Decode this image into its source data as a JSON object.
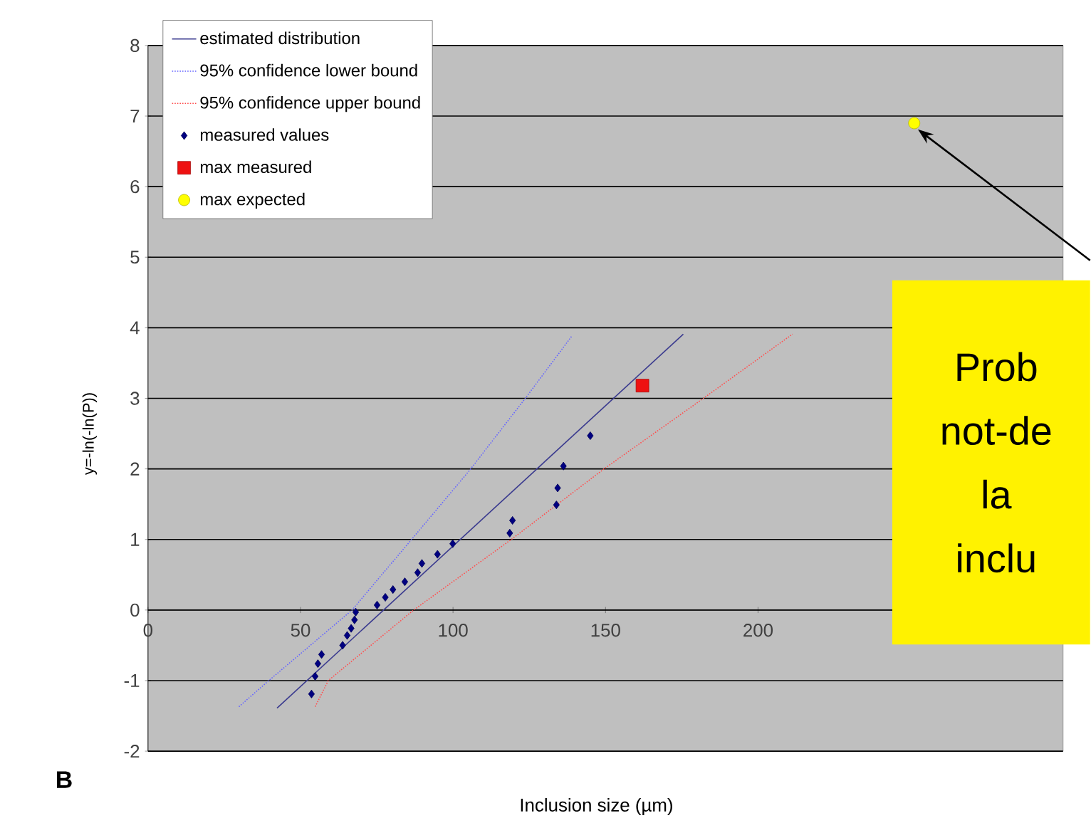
{
  "chart_data": {
    "type": "scatter",
    "xlabel": "Inclusion size (µm)",
    "ylabel": "y=-ln(-ln(P))",
    "xlim": [
      0,
      300
    ],
    "xticks": [
      0,
      50,
      100,
      150,
      200
    ],
    "ylim": [
      -2,
      8
    ],
    "yticks": [
      -2,
      -1,
      0,
      1,
      2,
      3,
      4,
      5,
      6,
      7,
      8
    ],
    "grid": "y",
    "legend": "top left",
    "annotations": [
      "B",
      "Prob not-de la inclu"
    ],
    "series": [
      {
        "name": "estimated distribution",
        "type": "line",
        "color": "#3b3b8f",
        "marker": "none",
        "line_style": "solid",
        "x": [
          42.3,
          175.5
        ],
        "values": [
          -1.39,
          3.91
        ]
      },
      {
        "name": "95% confidence lower bound",
        "type": "line",
        "color": "#6666ff",
        "marker": "none",
        "line_style": "dotted",
        "x": [
          29.8,
          39.6,
          66.9,
          86.4,
          105.8,
          123.7,
          138.9
        ],
        "values": [
          -1.37,
          -1,
          0,
          1,
          2,
          3,
          3.88
        ]
      },
      {
        "name": "95% confidence upper bound",
        "type": "line",
        "color": "#ff5050",
        "marker": "none",
        "line_style": "dotted",
        "x": [
          54.8,
          59.1,
          87.1,
          119.1,
          149.5,
          182.1,
          211.3
        ],
        "values": [
          -1.37,
          -1,
          0,
          1,
          2,
          3,
          3.91
        ]
      },
      {
        "name": "measured values",
        "color": "#000080",
        "marker": "diamond",
        "x": [
          53.6,
          54.8,
          55.7,
          56.9,
          63.8,
          65.3,
          66.6,
          67.7,
          68.1,
          75.1,
          77.8,
          80.3,
          84.2,
          88.4,
          89.8,
          94.9,
          99.9,
          118.6,
          119.5,
          133.9,
          134.3,
          136.2,
          145.0
        ],
        "values": [
          -1.19,
          -0.94,
          -0.76,
          -0.63,
          -0.5,
          -0.36,
          -0.26,
          -0.14,
          -0.03,
          0.07,
          0.18,
          0.29,
          0.4,
          0.53,
          0.66,
          0.79,
          0.94,
          1.09,
          1.27,
          1.49,
          1.73,
          2.04,
          2.47
        ]
      },
      {
        "name": "max measured",
        "color": "#ee1111",
        "marker": "square",
        "x": [
          162.1
        ],
        "values": [
          3.18
        ]
      },
      {
        "name": "max expected",
        "color": "#ffff00",
        "marker": "circle",
        "x": [
          251.2
        ],
        "values": [
          6.9
        ]
      }
    ]
  }
}
